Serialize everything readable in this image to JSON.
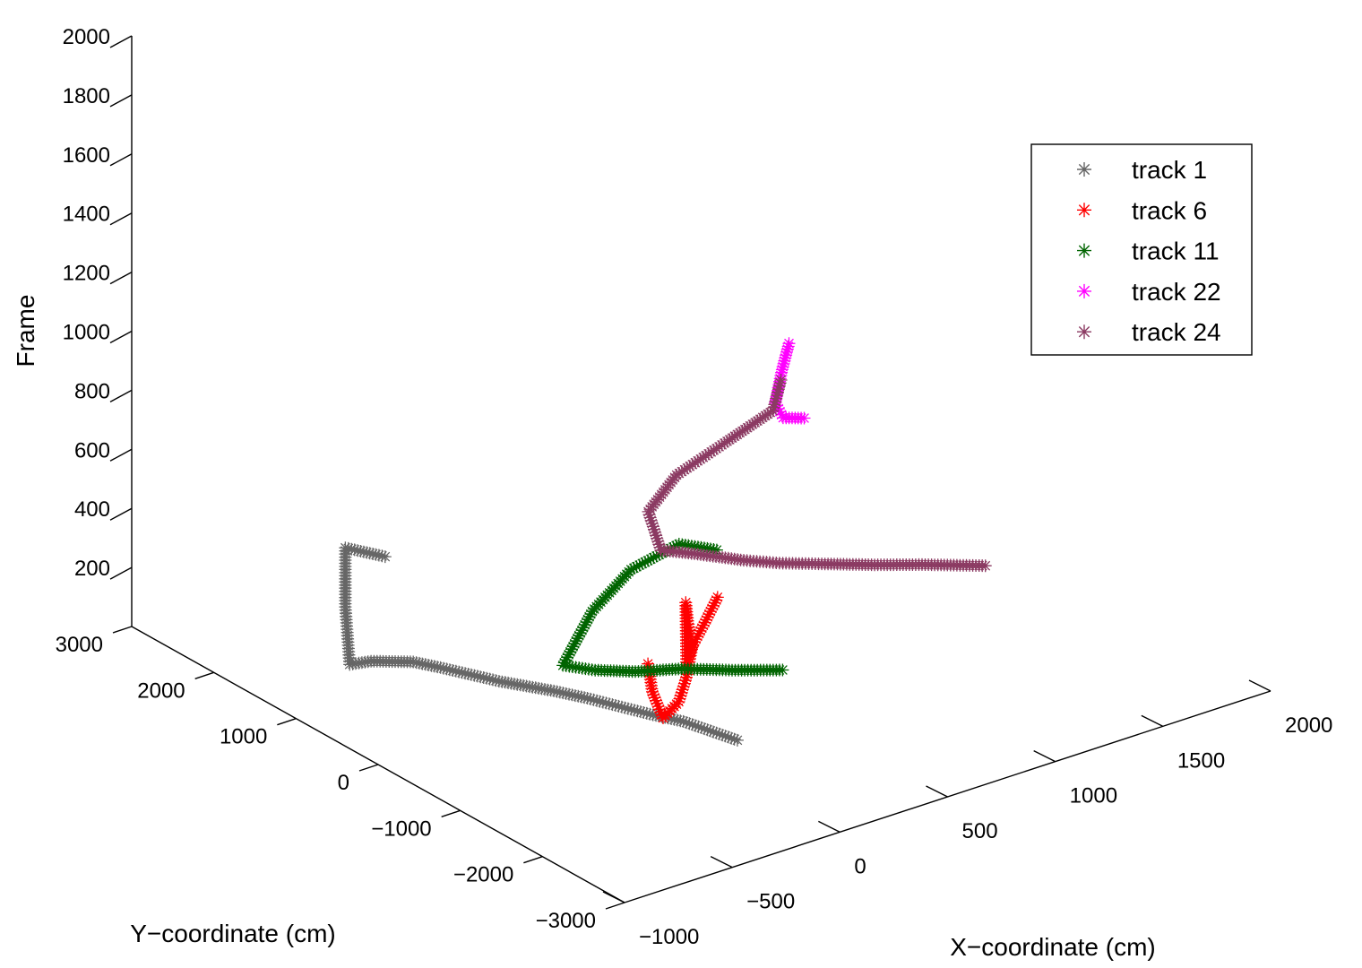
{
  "chart_data": {
    "type": "scatter",
    "projection": "3d",
    "title": "",
    "xlabel": "X−coordinate (cm)",
    "ylabel": "Y−coordinate (cm)",
    "zlabel": "Frame",
    "xlim": [
      -1000,
      2000
    ],
    "ylim": [
      -3000,
      3000
    ],
    "zlim": [
      0,
      2000
    ],
    "xticks": [
      -1000,
      -500,
      0,
      500,
      1000,
      1500,
      2000
    ],
    "yticks": [
      -3000,
      -2000,
      -1000,
      0,
      1000,
      2000,
      3000
    ],
    "zticks": [
      200,
      400,
      600,
      800,
      1000,
      1200,
      1400,
      1600,
      1800,
      2000
    ],
    "xtick_labels": [
      "−1000",
      "−500",
      "0",
      "500",
      "1000",
      "1500",
      "2000"
    ],
    "ytick_labels": [
      "−3000",
      "−2000",
      "−1000",
      "0",
      "1000",
      "2000",
      "3000"
    ],
    "ztick_labels": [
      "200",
      "400",
      "600",
      "800",
      "1000",
      "1200",
      "1400",
      "1600",
      "1800",
      "2000"
    ],
    "grid": false,
    "legend_position": "top-right",
    "marker": "asterisk",
    "series": [
      {
        "name": "track 1",
        "color": "#666666",
        "points": [
          [
            180,
            -1280,
            0
          ],
          [
            150,
            -1030,
            0
          ],
          [
            120,
            -780,
            0
          ],
          [
            60,
            -530,
            0
          ],
          [
            10,
            -280,
            0
          ],
          [
            -40,
            -30,
            0
          ],
          [
            -100,
            220,
            0
          ],
          [
            -210,
            600,
            0
          ],
          [
            -310,
            1050,
            0
          ],
          [
            -360,
            1250,
            0
          ],
          [
            -420,
            1350,
            0
          ],
          [
            -480,
            1450,
            0
          ],
          [
            -560,
            1500,
            0
          ],
          [
            -580,
            1500,
            200
          ],
          [
            -580,
            1500,
            400
          ],
          [
            -510,
            1200,
            400
          ]
        ]
      },
      {
        "name": "track 6",
        "color": "#ff0000",
        "points": [
          [
            870,
            770,
            0
          ],
          [
            700,
            480,
            0
          ],
          [
            550,
            230,
            0
          ],
          [
            440,
            20,
            0
          ],
          [
            440,
            30,
            200
          ],
          [
            350,
            -230,
            200
          ],
          [
            230,
            -600,
            200
          ],
          [
            50,
            -1000,
            200
          ],
          [
            -100,
            -1300,
            200
          ],
          [
            -230,
            -1450,
            200
          ],
          [
            -280,
            -1450,
            300
          ],
          [
            -300,
            -1450,
            400
          ]
        ]
      },
      {
        "name": "track 11",
        "color": "#006400",
        "points": [
          [
            680,
            -520,
            0
          ],
          [
            540,
            -310,
            0
          ],
          [
            390,
            -50,
            0
          ],
          [
            240,
            120,
            0
          ],
          [
            130,
            320,
            0
          ],
          [
            60,
            530,
            0
          ],
          [
            120,
            330,
            200
          ],
          [
            220,
            120,
            350
          ],
          [
            340,
            -150,
            450
          ],
          [
            420,
            -400,
            450
          ]
        ]
      },
      {
        "name": "track 22",
        "color": "#ff00ff",
        "points": [
          [
            1520,
            1420,
            350
          ],
          [
            1460,
            1520,
            350
          ],
          [
            1440,
            1560,
            400
          ],
          [
            1460,
            1540,
            500
          ],
          [
            1480,
            1500,
            600
          ]
        ]
      },
      {
        "name": "track 24",
        "color": "#8b3a62",
        "points": [
          [
            1820,
            0,
            0
          ],
          [
            1640,
            300,
            0
          ],
          [
            1500,
            510,
            0
          ],
          [
            1350,
            760,
            0
          ],
          [
            1230,
            960,
            0
          ],
          [
            1140,
            1160,
            0
          ],
          [
            1030,
            1470,
            0
          ],
          [
            950,
            1670,
            0
          ],
          [
            960,
            1850,
            100
          ],
          [
            1080,
            1820,
            200
          ],
          [
            1250,
            1650,
            300
          ],
          [
            1390,
            1460,
            400
          ],
          [
            1420,
            1440,
            500
          ]
        ]
      }
    ]
  }
}
